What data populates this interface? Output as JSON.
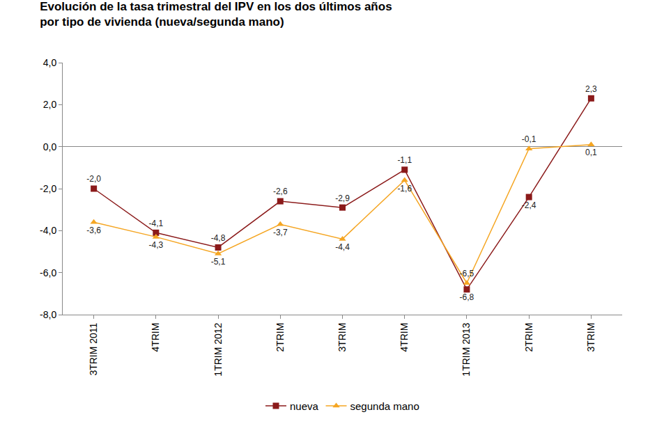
{
  "chart_data": {
    "type": "line",
    "title": "Evolución de la tasa trimestral del IPV en los dos últimos años\npor tipo de vivienda (nueva/segunda mano)",
    "categories": [
      "3TRIM 2011",
      "4TRIM",
      "1TRIM 2012",
      "2TRIM",
      "3TRIM",
      "4TRIM",
      "1TRIM 2013",
      "2TRIM",
      "3TRIM"
    ],
    "series": [
      {
        "name": "nueva",
        "color": "#8b1a1a",
        "marker": "square",
        "line_style": "solid",
        "values": [
          -2.0,
          -4.1,
          -4.8,
          -2.6,
          -2.9,
          -1.1,
          -6.8,
          -2.4,
          2.3
        ],
        "value_labels": [
          "-2,0",
          "-4,1",
          "-4,8",
          "-2,6",
          "-2,9",
          "-1,1",
          "-6,8",
          "-2,4",
          "2,3"
        ]
      },
      {
        "name": "segunda mano",
        "color": "#f5a623",
        "marker": "triangle-up",
        "line_style": "solid",
        "values": [
          -3.6,
          -4.3,
          -5.1,
          -3.7,
          -4.4,
          -1.6,
          -6.5,
          -0.1,
          0.1
        ],
        "value_labels": [
          "-3,6",
          "-4,3",
          "-5,1",
          "-3,7",
          "-4,4",
          "-1,6",
          "-6,5",
          "-0,1",
          "0,1"
        ]
      }
    ],
    "ylim": [
      -8,
      4
    ],
    "yticks": [
      {
        "value": -8,
        "label": "-8,0"
      },
      {
        "value": -6,
        "label": "-6,0"
      },
      {
        "value": -4,
        "label": "-4,0"
      },
      {
        "value": -2,
        "label": "-2,0"
      },
      {
        "value": 0,
        "label": "0,0"
      },
      {
        "value": 2,
        "label": "2,0"
      },
      {
        "value": 4,
        "label": "4,0"
      }
    ],
    "grid": false,
    "legend": "bottom",
    "data_labels": true
  }
}
